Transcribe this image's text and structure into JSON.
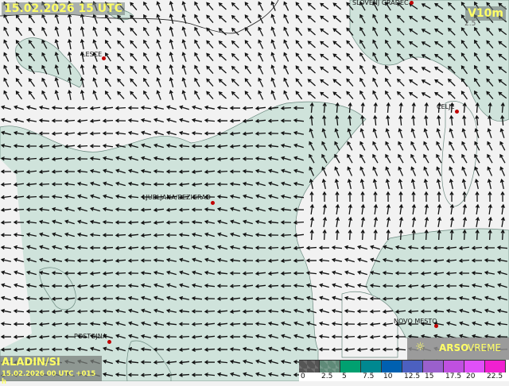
{
  "header": {
    "title": "15.02.2026 15 UTC",
    "variable": "V10m"
  },
  "model": {
    "name": "ALADIN/SI",
    "run": "15.02.2026 00 UTC +015 h"
  },
  "brand": {
    "icon": "arso-logo-icon",
    "name_bold": "ARSO",
    "name_light": "VREME"
  },
  "cities": [
    {
      "name": "SLOVENJ GRADEC"
    },
    {
      "name": "LESCE"
    },
    {
      "name": "CELJE"
    },
    {
      "name": "LJUBLJANA/BEZIGRAD"
    },
    {
      "name": "NOVO MESTO"
    },
    {
      "name": "POSTOJNA"
    }
  ],
  "contour_label": "2.5",
  "legend": {
    "unit_ticks": [
      "0",
      "2.5",
      "5",
      "7.5",
      "10",
      "12.5",
      "15",
      "17.5",
      "20",
      "22.5"
    ],
    "colors": [
      "#555555",
      "#5f8a78",
      "#00a070",
      "#008890",
      "#0060b0",
      "#4c60c0",
      "#9a60cc",
      "#c050e0",
      "#e050f8",
      "#f020d0"
    ]
  },
  "colors": {
    "calm": "#f2f2f2",
    "light_wind": "#cfe3db",
    "text_accent": "#ffff66",
    "city_dot": "#c00000"
  }
}
